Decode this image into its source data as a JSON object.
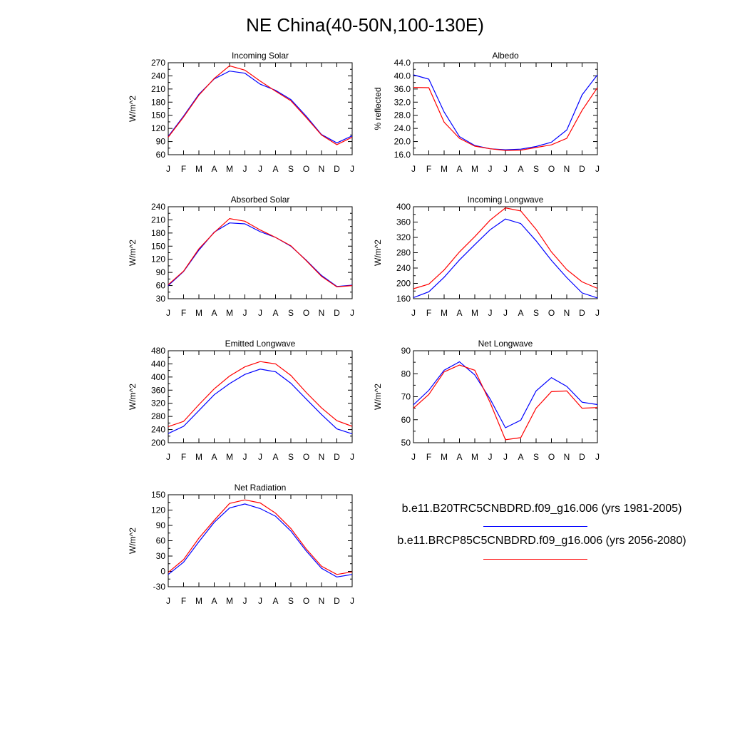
{
  "title": "NE China(40-50N,100-130E)",
  "months": [
    "J",
    "F",
    "M",
    "A",
    "M",
    "J",
    "J",
    "A",
    "S",
    "O",
    "N",
    "D",
    "J"
  ],
  "legend": [
    {
      "label": "b.e11.B20TRC5CNBDRD.f09_g16.006 (yrs 1981-2005)",
      "color": "#0000ff"
    },
    {
      "label": "b.e11.BRCP85C5CNBDRD.f09_g16.006 (yrs 2056-2080)",
      "color": "#ff0000"
    }
  ],
  "chart_data": [
    {
      "type": "line",
      "title": "Incoming Solar",
      "ylabel": "W/m^2",
      "ylim": [
        60,
        270
      ],
      "yticks": [
        "60",
        "90",
        "120",
        "150",
        "180",
        "210",
        "240",
        "270"
      ],
      "series": [
        {
          "color": "#0000ff",
          "values": [
            102,
            148,
            198,
            233,
            251,
            246,
            221,
            207,
            186,
            148,
            106,
            87,
            103
          ]
        },
        {
          "color": "#ff0000",
          "values": [
            100,
            146,
            196,
            234,
            263,
            253,
            228,
            205,
            183,
            145,
            105,
            83,
            100
          ]
        }
      ]
    },
    {
      "type": "line",
      "title": "Albedo",
      "ylabel": "% reflected",
      "ylim": [
        16,
        44
      ],
      "yticks": [
        "16.0",
        "20.0",
        "24.0",
        "28.0",
        "32.0",
        "36.0",
        "40.0",
        "44.0"
      ],
      "series": [
        {
          "color": "#0000ff",
          "values": [
            40.3,
            39.0,
            29.0,
            21.5,
            18.8,
            17.8,
            17.5,
            17.7,
            18.5,
            19.8,
            23.5,
            34.2,
            40.3
          ]
        },
        {
          "color": "#ff0000",
          "values": [
            36.5,
            36.4,
            25.9,
            21.0,
            18.6,
            17.8,
            17.3,
            17.4,
            18.2,
            19.0,
            21.0,
            29.5,
            36.4
          ]
        }
      ]
    },
    {
      "type": "line",
      "title": "Absorbed Solar",
      "ylabel": "W/m^2",
      "ylim": [
        30,
        240
      ],
      "yticks": [
        "30",
        "60",
        "90",
        "120",
        "150",
        "180",
        "210",
        "240"
      ],
      "series": [
        {
          "color": "#0000ff",
          "values": [
            60,
            92,
            141,
            182,
            203,
            201,
            183,
            170,
            150,
            118,
            83,
            58,
            61
          ]
        },
        {
          "color": "#ff0000",
          "values": [
            62,
            93,
            144,
            181,
            213,
            207,
            187,
            170,
            151,
            117,
            81,
            57,
            60
          ]
        }
      ]
    },
    {
      "type": "line",
      "title": "Incoming Longwave",
      "ylabel": "W/m^2",
      "ylim": [
        160,
        400
      ],
      "yticks": [
        "160",
        "200",
        "240",
        "280",
        "320",
        "360",
        "400"
      ],
      "series": [
        {
          "color": "#0000ff",
          "values": [
            163,
            178,
            216,
            261,
            301,
            340,
            368,
            356,
            311,
            260,
            215,
            175,
            162
          ]
        },
        {
          "color": "#ff0000",
          "values": [
            186,
            198,
            235,
            282,
            322,
            365,
            397,
            389,
            341,
            282,
            236,
            204,
            187
          ]
        }
      ]
    },
    {
      "type": "line",
      "title": "Emitted Longwave",
      "ylabel": "W/m^2",
      "ylim": [
        200,
        480
      ],
      "yticks": [
        "200",
        "240",
        "280",
        "320",
        "360",
        "400",
        "440",
        "480"
      ],
      "series": [
        {
          "color": "#0000ff",
          "values": [
            228,
            250,
            298,
            346,
            380,
            408,
            424,
            416,
            381,
            333,
            286,
            242,
            227
          ]
        },
        {
          "color": "#ff0000",
          "values": [
            249,
            265,
            316,
            364,
            403,
            431,
            447,
            440,
            405,
            353,
            306,
            267,
            250
          ]
        }
      ]
    },
    {
      "type": "line",
      "title": "Net Longwave",
      "ylabel": "W/m^2",
      "ylim": [
        50,
        90
      ],
      "yticks": [
        "50",
        "60",
        "70",
        "80",
        "90"
      ],
      "series": [
        {
          "color": "#0000ff",
          "values": [
            66.5,
            72.8,
            81.5,
            85.2,
            79.5,
            69.0,
            56.5,
            59.8,
            72.5,
            78.3,
            74.5,
            67.6,
            66.6
          ]
        },
        {
          "color": "#ff0000",
          "values": [
            65.0,
            71.0,
            80.8,
            83.8,
            81.5,
            67.5,
            51.3,
            52.2,
            65.0,
            72.2,
            72.5,
            65.0,
            65.3
          ]
        }
      ]
    },
    {
      "type": "line",
      "title": "Net Radiation",
      "ylabel": "W/m^2",
      "ylim": [
        -30,
        150
      ],
      "yticks": [
        "-30",
        "0",
        "30",
        "60",
        "90",
        "120",
        "150"
      ],
      "series": [
        {
          "color": "#0000ff",
          "values": [
            -6,
            18,
            58,
            96,
            124,
            132,
            123,
            108,
            79,
            40,
            6,
            -11,
            -6
          ]
        },
        {
          "color": "#ff0000",
          "values": [
            -2,
            23,
            65,
            100,
            133,
            140,
            134,
            114,
            84,
            44,
            10,
            -6,
            -1
          ]
        }
      ]
    }
  ]
}
